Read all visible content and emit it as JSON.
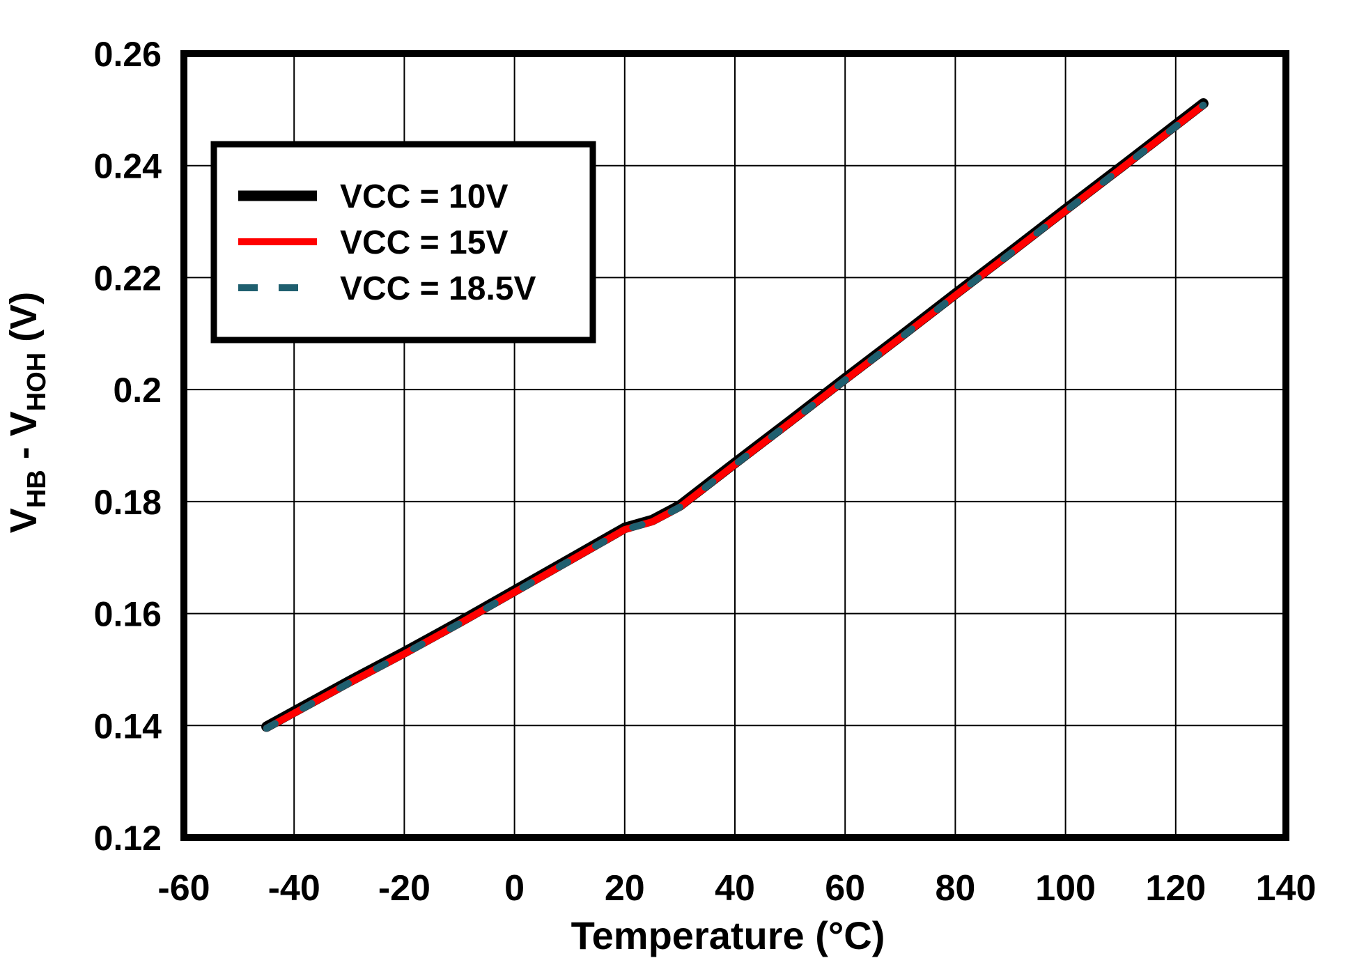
{
  "chart_data": {
    "type": "line",
    "title": "",
    "xlabel": "Temperature (°C)",
    "ylabel": "VHB - VHOH (V)",
    "ylabel_rich": [
      {
        "t": "V",
        "sub": false
      },
      {
        "t": "HB",
        "sub": true
      },
      {
        "t": " - V",
        "sub": false
      },
      {
        "t": "HOH",
        "sub": true
      },
      {
        "t": " (V)",
        "sub": false
      }
    ],
    "xlim": [
      -60,
      140
    ],
    "ylim": [
      0.12,
      0.26
    ],
    "xtick_values": [
      -60,
      -40,
      -20,
      0,
      20,
      40,
      60,
      80,
      100,
      120,
      140
    ],
    "xtick_labels": [
      "-60",
      "-40",
      "-20",
      "0",
      "20",
      "40",
      "60",
      "80",
      "100",
      "120",
      "140"
    ],
    "ytick_values": [
      0.12,
      0.14,
      0.16,
      0.18,
      0.2,
      0.22,
      0.24,
      0.26
    ],
    "ytick_labels": [
      "0.12",
      "0.14",
      "0.16",
      "0.18",
      "0.2",
      "0.22",
      "0.24",
      "0.26"
    ],
    "grid": true,
    "grid_color": "#000000",
    "background": "#ffffff",
    "legend": {
      "position": "top-left",
      "entries": [
        "VCC = 10V",
        "VCC = 15V",
        "VCC = 18.5V"
      ]
    },
    "series": [
      {
        "name": "VCC = 10V",
        "color": "#000000",
        "style": "solid",
        "points": [
          [
            -45,
            0.1398
          ],
          [
            -40,
            0.1425
          ],
          [
            -30,
            0.1479
          ],
          [
            -20,
            0.1531
          ],
          [
            -10,
            0.1585
          ],
          [
            0,
            0.1641
          ],
          [
            10,
            0.1697
          ],
          [
            20,
            0.1753
          ],
          [
            25,
            0.1767
          ],
          [
            30,
            0.1793
          ],
          [
            40,
            0.1869
          ],
          [
            50,
            0.1944
          ],
          [
            60,
            0.202
          ],
          [
            70,
            0.2095
          ],
          [
            80,
            0.2171
          ],
          [
            90,
            0.2246
          ],
          [
            100,
            0.2322
          ],
          [
            110,
            0.2397
          ],
          [
            120,
            0.2473
          ],
          [
            125,
            0.2511
          ]
        ]
      },
      {
        "name": "VCC = 15V",
        "color": "#ff0000",
        "style": "solid",
        "points": [
          [
            -45,
            0.1395
          ],
          [
            -40,
            0.1422
          ],
          [
            -30,
            0.1476
          ],
          [
            -20,
            0.1528
          ],
          [
            -10,
            0.1582
          ],
          [
            0,
            0.1638
          ],
          [
            10,
            0.1694
          ],
          [
            20,
            0.175
          ],
          [
            25,
            0.1764
          ],
          [
            30,
            0.179
          ],
          [
            40,
            0.1866
          ],
          [
            50,
            0.1941
          ],
          [
            60,
            0.2017
          ],
          [
            70,
            0.2092
          ],
          [
            80,
            0.2168
          ],
          [
            90,
            0.2243
          ],
          [
            100,
            0.2319
          ],
          [
            110,
            0.2394
          ],
          [
            120,
            0.247
          ],
          [
            125,
            0.2508
          ]
        ]
      },
      {
        "name": "VCC = 18.5V",
        "color": "#1f5f6f",
        "style": "dashed",
        "points": [
          [
            -45,
            0.1395
          ],
          [
            -40,
            0.1422
          ],
          [
            -30,
            0.1476
          ],
          [
            -20,
            0.1528
          ],
          [
            -10,
            0.1582
          ],
          [
            0,
            0.1638
          ],
          [
            10,
            0.1694
          ],
          [
            20,
            0.175
          ],
          [
            25,
            0.1764
          ],
          [
            30,
            0.179
          ],
          [
            40,
            0.1866
          ],
          [
            50,
            0.1941
          ],
          [
            60,
            0.2017
          ],
          [
            70,
            0.2092
          ],
          [
            80,
            0.2168
          ],
          [
            90,
            0.2243
          ],
          [
            100,
            0.2319
          ],
          [
            110,
            0.2394
          ],
          [
            120,
            0.247
          ],
          [
            125,
            0.2508
          ]
        ]
      }
    ]
  }
}
